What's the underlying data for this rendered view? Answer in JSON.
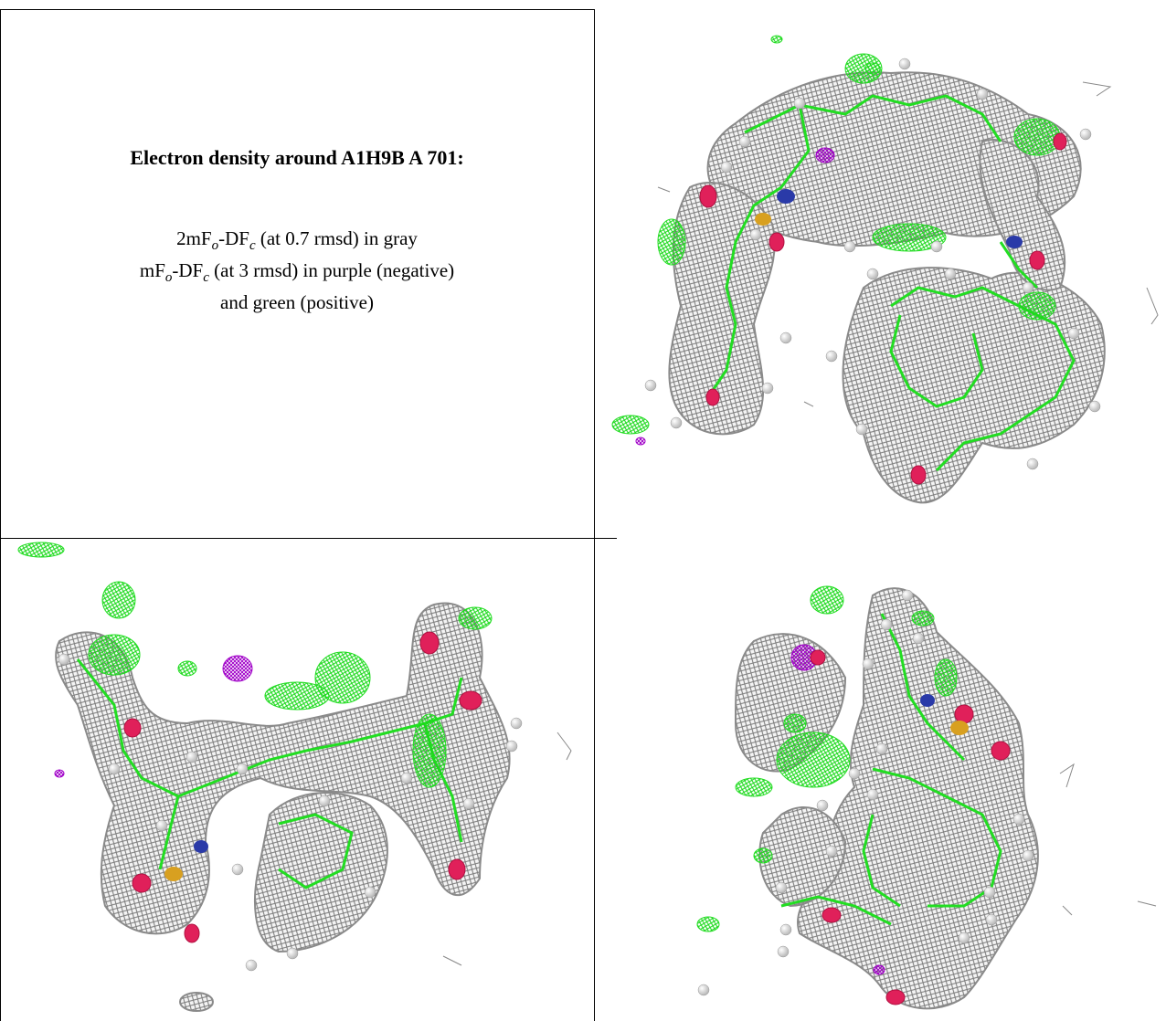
{
  "caption": {
    "title": "Electron density around A1H9B A 701:",
    "line1": {
      "prefix": "2mF",
      "sub1": "o",
      "mid": "-DF",
      "sub2": "c",
      "suffix": " (at 0.7 rmsd) in gray"
    },
    "line2": {
      "prefix": "mF",
      "sub1": "o",
      "mid": "-DF",
      "sub2": "c",
      "suffix": " (at 3 rmsd) in purple (negative)"
    },
    "line3": "and green (positive)"
  },
  "colors": {
    "gray_density": "#8c8c8c",
    "green_density": "#22dd22",
    "purple_density": "#aa00cc",
    "oxygen": "#e0205a",
    "nitrogen": "#2a3aa8",
    "sulfur": "#d8a020",
    "hydrogen": "#f2f2f2"
  },
  "panels": [
    {
      "view": "top-right"
    },
    {
      "view": "bottom-left"
    },
    {
      "view": "bottom-right"
    }
  ]
}
